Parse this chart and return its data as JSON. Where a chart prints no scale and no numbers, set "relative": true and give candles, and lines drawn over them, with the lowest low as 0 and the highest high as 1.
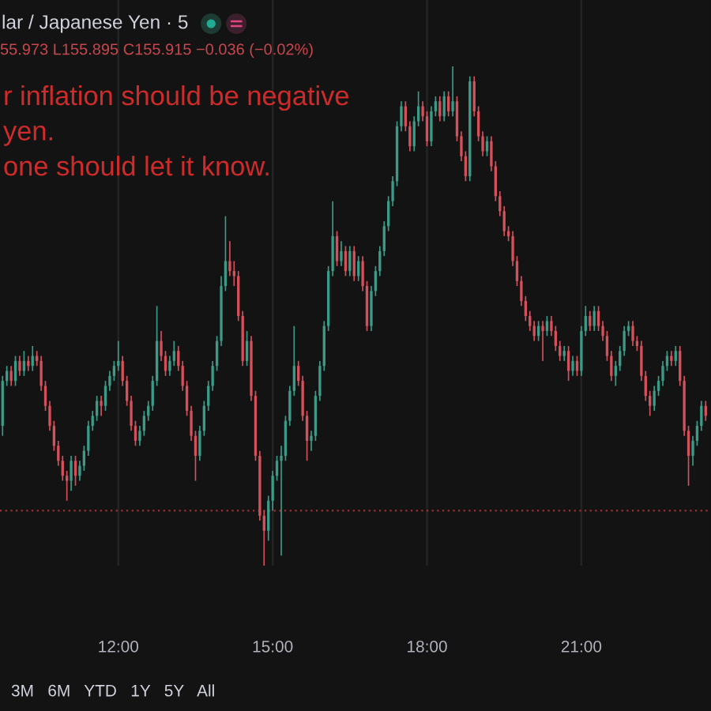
{
  "chart_data": {
    "type": "candlestick",
    "title": "lar / Japanese Yen · 5",
    "subtitle": "55.973 L155.895 C155.915 −0.036 (−0.02%)",
    "annotations": [
      "r inflation should be negative\nyen.\none should let it know.",
      "3M   6M   YTD   1Y   5Y   All"
    ],
    "relative": true,
    "grid": "x",
    "tick_labels": "x",
    "xlim": [
      9.7,
      23.52
    ],
    "xticks": [
      {
        "value": 12,
        "label": "12:00"
      },
      {
        "value": 15,
        "label": "15:00"
      },
      {
        "value": 18,
        "label": "18:00"
      },
      {
        "value": 21,
        "label": "21:00"
      }
    ],
    "ref_lines": [
      {
        "axis": "y",
        "value": 0.11,
        "color": "#9c3236",
        "line_style": "dotted"
      }
    ],
    "x": [
      9.75,
      9.833,
      9.917,
      10,
      10.083,
      10.167,
      10.25,
      10.333,
      10.417,
      10.5,
      10.583,
      10.667,
      10.75,
      10.833,
      10.917,
      11,
      11.083,
      11.167,
      11.25,
      11.333,
      11.417,
      11.5,
      11.583,
      11.667,
      11.75,
      11.833,
      11.917,
      12,
      12.083,
      12.167,
      12.25,
      12.333,
      12.417,
      12.5,
      12.583,
      12.667,
      12.75,
      12.833,
      12.917,
      13,
      13.083,
      13.167,
      13.25,
      13.333,
      13.417,
      13.5,
      13.583,
      13.667,
      13.75,
      13.833,
      13.917,
      14,
      14.083,
      14.167,
      14.25,
      14.333,
      14.417,
      14.5,
      14.583,
      14.667,
      14.75,
      14.833,
      14.917,
      15,
      15.083,
      15.167,
      15.25,
      15.333,
      15.417,
      15.5,
      15.583,
      15.667,
      15.75,
      15.833,
      15.917,
      16,
      16.083,
      16.167,
      16.25,
      16.333,
      16.417,
      16.5,
      16.583,
      16.667,
      16.75,
      16.833,
      16.917,
      17,
      17.083,
      17.167,
      17.25,
      17.333,
      17.417,
      17.5,
      17.583,
      17.667,
      17.75,
      17.833,
      17.917,
      18,
      18.083,
      18.167,
      18.25,
      18.333,
      18.417,
      18.5,
      18.583,
      18.667,
      18.75,
      18.833,
      18.917,
      19,
      19.083,
      19.167,
      19.25,
      19.333,
      19.417,
      19.5,
      19.583,
      19.667,
      19.75,
      19.833,
      19.917,
      20,
      20.083,
      20.167,
      20.25,
      20.333,
      20.417,
      20.5,
      20.583,
      20.667,
      20.75,
      20.833,
      20.917,
      21,
      21.083,
      21.167,
      21.25,
      21.333,
      21.417,
      21.5,
      21.583,
      21.667,
      21.75,
      21.833,
      21.917,
      22,
      22.083,
      22.167,
      22.25,
      22.333,
      22.417,
      22.5,
      22.583,
      22.667,
      22.75,
      22.833,
      22.917,
      23,
      23.083,
      23.167,
      23.25,
      23.333,
      23.417
    ],
    "ohlc": [
      [
        0.28,
        0.38,
        0.26,
        0.37
      ],
      [
        0.37,
        0.4,
        0.36,
        0.39
      ],
      [
        0.39,
        0.4,
        0.36,
        0.37
      ],
      [
        0.37,
        0.42,
        0.36,
        0.41
      ],
      [
        0.41,
        0.42,
        0.38,
        0.39
      ],
      [
        0.39,
        0.43,
        0.38,
        0.41
      ],
      [
        0.41,
        0.42,
        0.39,
        0.4
      ],
      [
        0.4,
        0.44,
        0.39,
        0.42
      ],
      [
        0.42,
        0.43,
        0.4,
        0.41
      ],
      [
        0.41,
        0.42,
        0.35,
        0.36
      ],
      [
        0.36,
        0.37,
        0.31,
        0.32
      ],
      [
        0.32,
        0.33,
        0.27,
        0.28
      ],
      [
        0.28,
        0.29,
        0.23,
        0.24
      ],
      [
        0.24,
        0.25,
        0.2,
        0.21
      ],
      [
        0.21,
        0.22,
        0.17,
        0.18
      ],
      [
        0.18,
        0.19,
        0.13,
        0.17
      ],
      [
        0.17,
        0.22,
        0.15,
        0.21
      ],
      [
        0.21,
        0.22,
        0.16,
        0.18
      ],
      [
        0.18,
        0.21,
        0.17,
        0.2
      ],
      [
        0.2,
        0.24,
        0.19,
        0.23
      ],
      [
        0.23,
        0.29,
        0.22,
        0.28
      ],
      [
        0.28,
        0.31,
        0.27,
        0.3
      ],
      [
        0.3,
        0.34,
        0.29,
        0.33
      ],
      [
        0.33,
        0.34,
        0.3,
        0.32
      ],
      [
        0.32,
        0.37,
        0.31,
        0.36
      ],
      [
        0.36,
        0.39,
        0.35,
        0.38
      ],
      [
        0.38,
        0.41,
        0.37,
        0.4
      ],
      [
        0.4,
        0.45,
        0.39,
        0.41
      ],
      [
        0.41,
        0.42,
        0.36,
        0.37
      ],
      [
        0.37,
        0.38,
        0.32,
        0.33
      ],
      [
        0.33,
        0.34,
        0.27,
        0.28
      ],
      [
        0.28,
        0.29,
        0.24,
        0.25
      ],
      [
        0.25,
        0.28,
        0.24,
        0.27
      ],
      [
        0.27,
        0.31,
        0.26,
        0.3
      ],
      [
        0.3,
        0.33,
        0.29,
        0.32
      ],
      [
        0.32,
        0.38,
        0.31,
        0.37
      ],
      [
        0.37,
        0.52,
        0.36,
        0.45
      ],
      [
        0.45,
        0.47,
        0.41,
        0.42
      ],
      [
        0.42,
        0.43,
        0.38,
        0.39
      ],
      [
        0.39,
        0.42,
        0.38,
        0.41
      ],
      [
        0.41,
        0.45,
        0.4,
        0.43
      ],
      [
        0.43,
        0.44,
        0.39,
        0.4
      ],
      [
        0.4,
        0.41,
        0.35,
        0.36
      ],
      [
        0.36,
        0.37,
        0.3,
        0.31
      ],
      [
        0.31,
        0.32,
        0.25,
        0.26
      ],
      [
        0.26,
        0.27,
        0.17,
        0.22
      ],
      [
        0.22,
        0.28,
        0.21,
        0.27
      ],
      [
        0.27,
        0.33,
        0.26,
        0.32
      ],
      [
        0.32,
        0.37,
        0.31,
        0.36
      ],
      [
        0.36,
        0.41,
        0.35,
        0.4
      ],
      [
        0.4,
        0.46,
        0.39,
        0.45
      ],
      [
        0.45,
        0.58,
        0.44,
        0.56
      ],
      [
        0.56,
        0.7,
        0.55,
        0.61
      ],
      [
        0.61,
        0.65,
        0.58,
        0.59
      ],
      [
        0.59,
        0.61,
        0.56,
        0.58
      ],
      [
        0.58,
        0.59,
        0.49,
        0.5
      ],
      [
        0.5,
        0.51,
        0.4,
        0.41
      ],
      [
        0.41,
        0.47,
        0.4,
        0.45
      ],
      [
        0.45,
        0.46,
        0.33,
        0.34
      ],
      [
        0.34,
        0.35,
        0.21,
        0.22
      ],
      [
        0.22,
        0.23,
        0.09,
        0.1
      ],
      [
        0.1,
        0.11,
        0.0,
        0.07
      ],
      [
        0.07,
        0.14,
        0.05,
        0.13
      ],
      [
        0.13,
        0.19,
        0.11,
        0.18
      ],
      [
        0.18,
        0.22,
        0.17,
        0.21
      ],
      [
        0.21,
        0.24,
        0.02,
        0.22
      ],
      [
        0.22,
        0.3,
        0.21,
        0.29
      ],
      [
        0.29,
        0.36,
        0.28,
        0.35
      ],
      [
        0.35,
        0.48,
        0.34,
        0.4
      ],
      [
        0.4,
        0.41,
        0.36,
        0.37
      ],
      [
        0.37,
        0.38,
        0.29,
        0.3
      ],
      [
        0.3,
        0.31,
        0.21,
        0.25
      ],
      [
        0.25,
        0.27,
        0.23,
        0.26
      ],
      [
        0.26,
        0.35,
        0.25,
        0.34
      ],
      [
        0.34,
        0.41,
        0.33,
        0.4
      ],
      [
        0.4,
        0.49,
        0.39,
        0.48
      ],
      [
        0.48,
        0.6,
        0.47,
        0.59
      ],
      [
        0.59,
        0.73,
        0.58,
        0.66
      ],
      [
        0.66,
        0.67,
        0.6,
        0.61
      ],
      [
        0.61,
        0.65,
        0.6,
        0.63
      ],
      [
        0.63,
        0.64,
        0.58,
        0.59
      ],
      [
        0.59,
        0.64,
        0.58,
        0.63
      ],
      [
        0.63,
        0.64,
        0.57,
        0.58
      ],
      [
        0.58,
        0.62,
        0.57,
        0.61
      ],
      [
        0.61,
        0.62,
        0.55,
        0.56
      ],
      [
        0.56,
        0.57,
        0.47,
        0.48
      ],
      [
        0.48,
        0.56,
        0.47,
        0.55
      ],
      [
        0.55,
        0.6,
        0.54,
        0.59
      ],
      [
        0.59,
        0.64,
        0.58,
        0.63
      ],
      [
        0.63,
        0.69,
        0.62,
        0.68
      ],
      [
        0.68,
        0.74,
        0.67,
        0.73
      ],
      [
        0.73,
        0.78,
        0.72,
        0.77
      ],
      [
        0.77,
        0.89,
        0.76,
        0.88
      ],
      [
        0.88,
        0.93,
        0.87,
        0.92
      ],
      [
        0.92,
        0.93,
        0.87,
        0.88
      ],
      [
        0.88,
        0.89,
        0.83,
        0.84
      ],
      [
        0.84,
        0.9,
        0.83,
        0.89
      ],
      [
        0.89,
        0.95,
        0.88,
        0.92
      ],
      [
        0.92,
        0.93,
        0.89,
        0.9
      ],
      [
        0.9,
        0.91,
        0.84,
        0.85
      ],
      [
        0.85,
        0.92,
        0.84,
        0.91
      ],
      [
        0.91,
        0.94,
        0.9,
        0.93
      ],
      [
        0.93,
        0.94,
        0.89,
        0.9
      ],
      [
        0.9,
        0.95,
        0.89,
        0.94
      ],
      [
        0.94,
        0.95,
        0.9,
        0.91
      ],
      [
        0.91,
        1.0,
        0.9,
        0.93
      ],
      [
        0.93,
        0.94,
        0.85,
        0.86
      ],
      [
        0.86,
        0.87,
        0.81,
        0.82
      ],
      [
        0.82,
        0.83,
        0.77,
        0.78
      ],
      [
        0.78,
        0.98,
        0.77,
        0.97
      ],
      [
        0.97,
        0.98,
        0.9,
        0.91
      ],
      [
        0.91,
        0.92,
        0.85,
        0.86
      ],
      [
        0.86,
        0.87,
        0.82,
        0.83
      ],
      [
        0.83,
        0.86,
        0.82,
        0.85
      ],
      [
        0.85,
        0.86,
        0.79,
        0.8
      ],
      [
        0.8,
        0.81,
        0.73,
        0.74
      ],
      [
        0.74,
        0.75,
        0.7,
        0.71
      ],
      [
        0.71,
        0.72,
        0.66,
        0.67
      ],
      [
        0.67,
        0.68,
        0.65,
        0.66
      ],
      [
        0.66,
        0.67,
        0.6,
        0.61
      ],
      [
        0.61,
        0.62,
        0.56,
        0.57
      ],
      [
        0.57,
        0.58,
        0.52,
        0.53
      ],
      [
        0.53,
        0.54,
        0.49,
        0.5
      ],
      [
        0.5,
        0.51,
        0.47,
        0.48
      ],
      [
        0.48,
        0.49,
        0.45,
        0.46
      ],
      [
        0.46,
        0.49,
        0.45,
        0.48
      ],
      [
        0.48,
        0.49,
        0.41,
        0.47
      ],
      [
        0.47,
        0.5,
        0.46,
        0.49
      ],
      [
        0.49,
        0.5,
        0.46,
        0.47
      ],
      [
        0.47,
        0.48,
        0.43,
        0.44
      ],
      [
        0.44,
        0.45,
        0.41,
        0.42
      ],
      [
        0.42,
        0.44,
        0.41,
        0.43
      ],
      [
        0.43,
        0.44,
        0.37,
        0.39
      ],
      [
        0.39,
        0.42,
        0.38,
        0.41
      ],
      [
        0.41,
        0.42,
        0.38,
        0.39
      ],
      [
        0.39,
        0.48,
        0.38,
        0.47
      ],
      [
        0.47,
        0.52,
        0.46,
        0.5
      ],
      [
        0.5,
        0.51,
        0.47,
        0.48
      ],
      [
        0.48,
        0.52,
        0.47,
        0.51
      ],
      [
        0.51,
        0.52,
        0.47,
        0.48
      ],
      [
        0.48,
        0.49,
        0.45,
        0.46
      ],
      [
        0.46,
        0.47,
        0.41,
        0.42
      ],
      [
        0.42,
        0.43,
        0.37,
        0.38
      ],
      [
        0.38,
        0.41,
        0.36,
        0.4
      ],
      [
        0.4,
        0.44,
        0.39,
        0.43
      ],
      [
        0.43,
        0.48,
        0.42,
        0.47
      ],
      [
        0.47,
        0.49,
        0.46,
        0.48
      ],
      [
        0.48,
        0.49,
        0.44,
        0.45
      ],
      [
        0.45,
        0.46,
        0.43,
        0.44
      ],
      [
        0.44,
        0.45,
        0.37,
        0.38
      ],
      [
        0.38,
        0.39,
        0.33,
        0.34
      ],
      [
        0.34,
        0.35,
        0.3,
        0.32
      ],
      [
        0.32,
        0.36,
        0.31,
        0.35
      ],
      [
        0.35,
        0.38,
        0.34,
        0.37
      ],
      [
        0.37,
        0.41,
        0.36,
        0.4
      ],
      [
        0.4,
        0.43,
        0.39,
        0.42
      ],
      [
        0.42,
        0.43,
        0.4,
        0.41
      ],
      [
        0.41,
        0.44,
        0.4,
        0.43
      ],
      [
        0.43,
        0.44,
        0.36,
        0.37
      ],
      [
        0.37,
        0.38,
        0.26,
        0.27
      ],
      [
        0.27,
        0.28,
        0.16,
        0.22
      ],
      [
        0.22,
        0.26,
        0.2,
        0.25
      ],
      [
        0.25,
        0.29,
        0.24,
        0.28
      ],
      [
        0.28,
        0.33,
        0.27,
        0.32
      ],
      [
        0.32,
        0.33,
        0.29,
        0.3
      ]
    ],
    "colors": [
      "#3b9b87",
      "#3b9b87",
      "#d4515b",
      "#3b9b87",
      "#d4515b",
      "#3b9b87",
      "#d4515b",
      "#3b9b87",
      "#d4515b",
      "#d4515b",
      "#d4515b",
      "#d4515b",
      "#d4515b",
      "#d4515b",
      "#d4515b",
      "#d4515b",
      "#3b9b87",
      "#d4515b",
      "#3b9b87",
      "#3b9b87",
      "#3b9b87",
      "#3b9b87",
      "#3b9b87",
      "#d4515b",
      "#3b9b87",
      "#3b9b87",
      "#3b9b87",
      "#3b9b87",
      "#d4515b",
      "#d4515b",
      "#d4515b",
      "#d4515b",
      "#3b9b87",
      "#3b9b87",
      "#3b9b87",
      "#3b9b87",
      "#3b9b87",
      "#d4515b",
      "#d4515b",
      "#3b9b87",
      "#3b9b87",
      "#d4515b",
      "#d4515b",
      "#d4515b",
      "#d4515b",
      "#d4515b",
      "#3b9b87",
      "#3b9b87",
      "#3b9b87",
      "#3b9b87",
      "#3b9b87",
      "#3b9b87",
      "#3b9b87",
      "#d4515b",
      "#d4515b",
      "#d4515b",
      "#d4515b",
      "#3b9b87",
      "#d4515b",
      "#d4515b",
      "#d4515b",
      "#d4515b",
      "#3b9b87",
      "#3b9b87",
      "#3b9b87",
      "#3b9b87",
      "#3b9b87",
      "#3b9b87",
      "#3b9b87",
      "#d4515b",
      "#d4515b",
      "#d4515b",
      "#3b9b87",
      "#3b9b87",
      "#3b9b87",
      "#3b9b87",
      "#3b9b87",
      "#3b9b87",
      "#d4515b",
      "#3b9b87",
      "#d4515b",
      "#3b9b87",
      "#d4515b",
      "#3b9b87",
      "#d4515b",
      "#d4515b",
      "#3b9b87",
      "#3b9b87",
      "#3b9b87",
      "#3b9b87",
      "#3b9b87",
      "#3b9b87",
      "#3b9b87",
      "#3b9b87",
      "#d4515b",
      "#d4515b",
      "#3b9b87",
      "#3b9b87",
      "#d4515b",
      "#d4515b",
      "#3b9b87",
      "#3b9b87",
      "#d4515b",
      "#3b9b87",
      "#d4515b",
      "#3b9b87",
      "#d4515b",
      "#d4515b",
      "#d4515b",
      "#3b9b87",
      "#d4515b",
      "#d4515b",
      "#d4515b",
      "#3b9b87",
      "#d4515b",
      "#d4515b",
      "#d4515b",
      "#d4515b",
      "#d4515b",
      "#d4515b",
      "#d4515b",
      "#d4515b",
      "#d4515b",
      "#d4515b",
      "#d4515b",
      "#3b9b87",
      "#d4515b",
      "#3b9b87",
      "#d4515b",
      "#d4515b",
      "#d4515b",
      "#3b9b87",
      "#d4515b",
      "#3b9b87",
      "#d4515b",
      "#3b9b87",
      "#3b9b87",
      "#d4515b",
      "#3b9b87",
      "#d4515b",
      "#d4515b",
      "#d4515b",
      "#d4515b",
      "#3b9b87",
      "#3b9b87",
      "#3b9b87",
      "#3b9b87",
      "#d4515b",
      "#d4515b",
      "#d4515b",
      "#d4515b",
      "#d4515b",
      "#3b9b87",
      "#3b9b87",
      "#3b9b87",
      "#3b9b87",
      "#d4515b",
      "#3b9b87",
      "#d4515b",
      "#d4515b",
      "#d4515b",
      "#3b9b87",
      "#3b9b87",
      "#3b9b87",
      "#d4515b"
    ]
  }
}
